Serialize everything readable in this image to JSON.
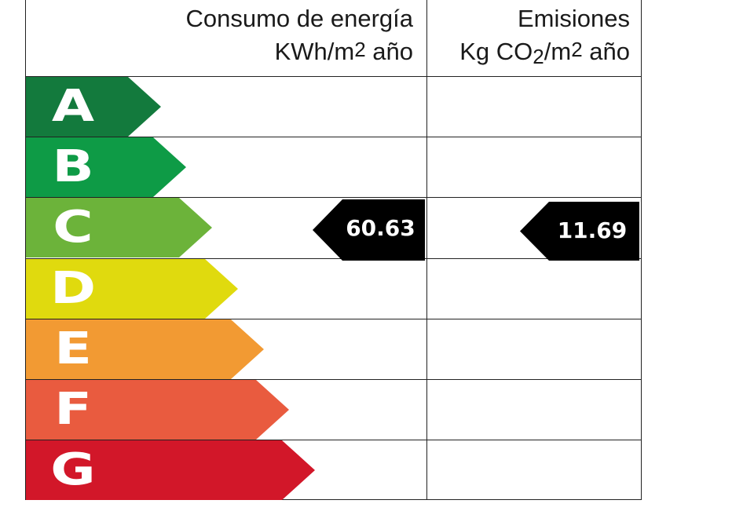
{
  "header": {
    "energy_line1": "Consumo de energía",
    "energy_line2_pre": "KWh/m",
    "energy_line2_sup": "2",
    "energy_line2_post": " año",
    "emissions_line1": "Emisiones",
    "emissions_line2_a": "Kg CO",
    "emissions_line2_sub": "2",
    "emissions_line2_b": "/m",
    "emissions_line2_sup": "2",
    "emissions_line2_post": " año"
  },
  "ratings": [
    {
      "letter": "A",
      "color": "#137a3d"
    },
    {
      "letter": "B",
      "color": "#0e9b46"
    },
    {
      "letter": "C",
      "color": "#6cb33a"
    },
    {
      "letter": "D",
      "color": "#e0da0e"
    },
    {
      "letter": "E",
      "color": "#f29a33"
    },
    {
      "letter": "F",
      "color": "#e95b3f"
    },
    {
      "letter": "G",
      "color": "#d21729"
    }
  ],
  "energy_marker": {
    "value": "60.63",
    "rating": "C",
    "color": "#000000"
  },
  "emissions_marker": {
    "value": "11.69",
    "rating": "C",
    "color": "#000000"
  }
}
